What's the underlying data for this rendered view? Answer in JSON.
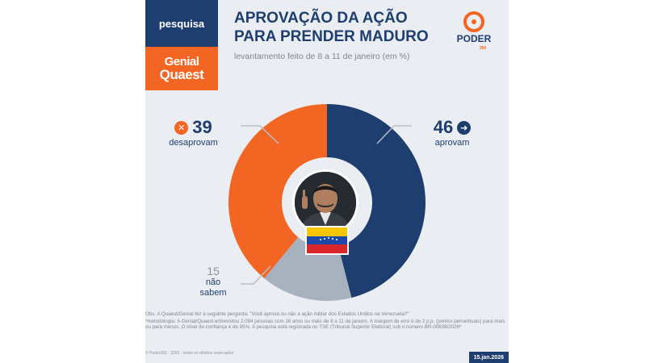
{
  "header": {
    "tab_pesquisa": "pesquisa",
    "brand_line1": "Genial",
    "brand_line2": "Quaest",
    "title": "APROVAÇÃO DA AÇÃO PARA PRENDER MADURO",
    "subtitle": "levantamento feito de 8 a 11 de janeiro (em %)",
    "logo_text": "PODER",
    "logo_sub": "360"
  },
  "chart_data": {
    "type": "pie",
    "variant": "donut",
    "title": "APROVAÇÃO DA AÇÃO PARA PRENDER MADURO",
    "subtitle": "levantamento feito de 8 a 11 de janeiro (em %)",
    "categories": [
      "aprovam",
      "não sabem",
      "desaprovam"
    ],
    "values": [
      46,
      15,
      39
    ],
    "colors": [
      "#1d3e6e",
      "#a8b2bf",
      "#f26522"
    ],
    "labels": [
      {
        "value": "46",
        "caption": "aprovam"
      },
      {
        "value": "39",
        "caption": "desaprovam"
      },
      {
        "value": "15",
        "caption_line1": "não",
        "caption_line2": "sabem"
      }
    ]
  },
  "icons": {
    "approve": "arrow-right-circle-icon",
    "disapprove": "x-circle-icon"
  },
  "footer": {
    "note1": "Obs: A Quaest/Genial fez a seguinte pergunta: \"Você aprova ou não a ação militar dos Estados Unidos na Venezuela?\"",
    "note2": "*metodologia: A Genial/Quaest entrevistou 2.084 pessoas com 16 anos ou mais de 8 a 11 de janeiro. A margem de erro é de 2 p.p. (pontos percentuais) para mais ou para menos. O nível de confiança é de 95%. A pesquisa está registrada no TSE (Tribunal Superior Eleitoral) sob o número BR-00838/2026*",
    "copyright": "© Poder360 · 2026 · todos os direitos reservados",
    "date": "15.jan.2026"
  }
}
